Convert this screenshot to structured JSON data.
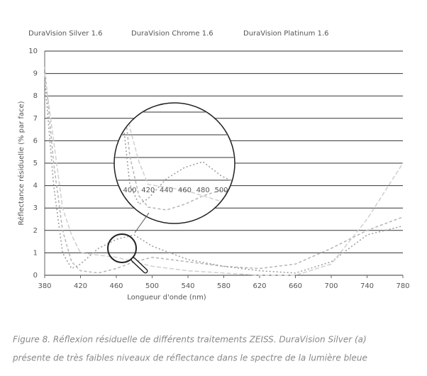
{
  "chart_data": {
    "type": "line",
    "y_label": "Réflectance résiduelle (% par face)",
    "x_label": "Longueur d'onde (nm)",
    "x": [
      380,
      390,
      400,
      410,
      420,
      440,
      460,
      480,
      500,
      540,
      580,
      620,
      660,
      700,
      740,
      780
    ],
    "series": [
      {
        "name": "DuraVision Silver 1.6",
        "color": "#b5b5b5",
        "values": [
          9.3,
          5,
          2,
          0.6,
          0.2,
          0.1,
          0.3,
          0.6,
          0.8,
          0.6,
          0.4,
          0.3,
          0.5,
          1.2,
          2,
          2.6
        ]
      },
      {
        "name": "DuraVision Chrome 1.6",
        "color": "#9a9a9a",
        "values": [
          8.8,
          4,
          1,
          0.3,
          0.5,
          1.2,
          1.6,
          1.8,
          1.3,
          0.7,
          0.4,
          0.2,
          0.1,
          0.6,
          1.8,
          2.2
        ]
      },
      {
        "name": "DuraVision Platinum 1.6",
        "color": "#cfcfcf",
        "values": [
          9,
          6,
          3,
          1.8,
          1,
          0.9,
          0.8,
          0.6,
          0.4,
          0.2,
          0.1,
          0,
          0,
          0.5,
          2.5,
          5
        ]
      }
    ],
    "xlim": [
      380,
      780
    ],
    "ylim": [
      0,
      10
    ],
    "xticks": [
      380,
      420,
      460,
      500,
      540,
      580,
      620,
      660,
      700,
      740,
      780
    ],
    "yticks": [
      0,
      1,
      2,
      3,
      4,
      5,
      6,
      7,
      8,
      9,
      10
    ],
    "grid": true,
    "inset": {
      "xlim": [
        395,
        510
      ],
      "ylim": [
        0,
        3
      ],
      "xticks": [
        400,
        420,
        440,
        460,
        480,
        500
      ]
    }
  },
  "caption": [
    "Figure 8. Réflexion résiduelle de différents traitements ZEISS. DuraVision Silver (a)",
    "présente de très faibles niveaux de réflectance dans le spectre de la lumière bleue"
  ]
}
